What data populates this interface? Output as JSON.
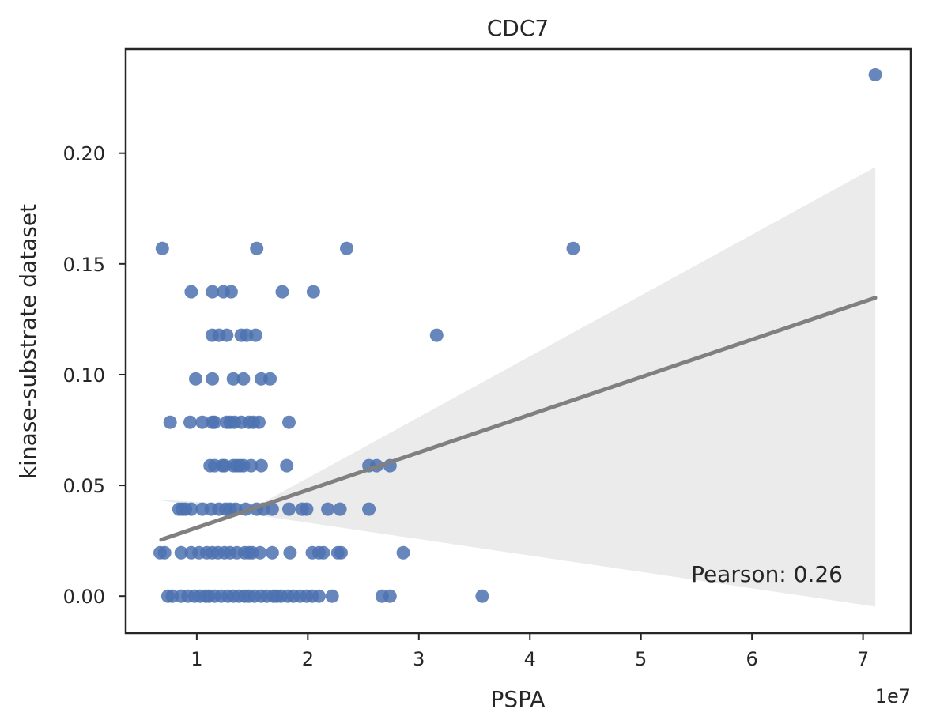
{
  "chart_data": {
    "type": "scatter",
    "title": "CDC7",
    "xlabel": "PSPA",
    "ylabel": "kinase-substrate dataset",
    "x_offset_label": "1e7",
    "x_tick_labels": [
      "1",
      "2",
      "3",
      "4",
      "5",
      "6",
      "7"
    ],
    "x_ticks": [
      1,
      2,
      3,
      4,
      5,
      6,
      7
    ],
    "y_tick_labels": [
      "0.00",
      "0.05",
      "0.10",
      "0.15",
      "0.20"
    ],
    "y_ticks": [
      0.0,
      0.05,
      0.1,
      0.15,
      0.2
    ],
    "xlim": [
      0.36,
      7.43
    ],
    "ylim": [
      -0.0167,
      0.247
    ],
    "grid": false,
    "annotation": "Pearson: 0.26",
    "colors": {
      "points": "#4c72b0",
      "regression_line": "#808080",
      "confidence_band": "#ebebeb",
      "axes": "#262626"
    },
    "regression": {
      "x": [
        0.68,
        7.11
      ],
      "y": [
        0.0255,
        0.1347
      ],
      "ci_lower": [
        0.0432,
        -0.0047
      ],
      "ci_upper": [
        0.0435,
        0.1937
      ],
      "ci_mid_x": 1.55,
      "ci_mid_lower": 0.0365,
      "ci_mid_upper": 0.041
    },
    "series": [
      {
        "points": [
          [
            7.11,
            0.2354
          ],
          [
            0.69,
            0.157
          ],
          [
            1.54,
            0.157
          ],
          [
            2.35,
            0.157
          ],
          [
            4.39,
            0.157
          ],
          [
            0.95,
            0.1374
          ],
          [
            1.14,
            0.1374
          ],
          [
            1.24,
            0.1374
          ],
          [
            1.31,
            0.1374
          ],
          [
            1.77,
            0.1374
          ],
          [
            2.05,
            0.1374
          ],
          [
            1.14,
            0.1178
          ],
          [
            1.2,
            0.1178
          ],
          [
            1.27,
            0.1178
          ],
          [
            1.4,
            0.1178
          ],
          [
            1.45,
            0.1178
          ],
          [
            1.53,
            0.1178
          ],
          [
            3.16,
            0.1178
          ],
          [
            0.99,
            0.0981
          ],
          [
            1.14,
            0.0981
          ],
          [
            1.33,
            0.0981
          ],
          [
            1.42,
            0.0981
          ],
          [
            1.58,
            0.0981
          ],
          [
            1.66,
            0.0981
          ],
          [
            0.76,
            0.0785
          ],
          [
            0.94,
            0.0785
          ],
          [
            1.05,
            0.0785
          ],
          [
            1.14,
            0.0785
          ],
          [
            1.16,
            0.0785
          ],
          [
            1.27,
            0.0785
          ],
          [
            1.3,
            0.0785
          ],
          [
            1.34,
            0.0785
          ],
          [
            1.4,
            0.0785
          ],
          [
            1.47,
            0.0785
          ],
          [
            1.51,
            0.0785
          ],
          [
            1.56,
            0.0785
          ],
          [
            1.83,
            0.0785
          ],
          [
            1.12,
            0.0589
          ],
          [
            1.16,
            0.0589
          ],
          [
            1.23,
            0.0589
          ],
          [
            1.25,
            0.0589
          ],
          [
            1.33,
            0.0589
          ],
          [
            1.36,
            0.0589
          ],
          [
            1.39,
            0.0589
          ],
          [
            1.42,
            0.0589
          ],
          [
            1.49,
            0.0589
          ],
          [
            1.58,
            0.0589
          ],
          [
            1.81,
            0.0589
          ],
          [
            2.55,
            0.0589
          ],
          [
            2.62,
            0.0589
          ],
          [
            2.74,
            0.0589
          ],
          [
            0.84,
            0.0393
          ],
          [
            0.87,
            0.0393
          ],
          [
            0.9,
            0.0393
          ],
          [
            0.95,
            0.0393
          ],
          [
            1.05,
            0.0393
          ],
          [
            1.13,
            0.0393
          ],
          [
            1.2,
            0.0393
          ],
          [
            1.26,
            0.0393
          ],
          [
            1.3,
            0.0393
          ],
          [
            1.35,
            0.0393
          ],
          [
            1.44,
            0.0393
          ],
          [
            1.54,
            0.0393
          ],
          [
            1.6,
            0.0393
          ],
          [
            1.68,
            0.0393
          ],
          [
            1.83,
            0.0393
          ],
          [
            1.95,
            0.0393
          ],
          [
            1.99,
            0.0393
          ],
          [
            2.18,
            0.0393
          ],
          [
            2.29,
            0.0393
          ],
          [
            2.55,
            0.0393
          ],
          [
            0.67,
            0.0196
          ],
          [
            0.71,
            0.0196
          ],
          [
            0.86,
            0.0196
          ],
          [
            0.95,
            0.0196
          ],
          [
            1.02,
            0.0196
          ],
          [
            1.09,
            0.0196
          ],
          [
            1.14,
            0.0196
          ],
          [
            1.19,
            0.0196
          ],
          [
            1.25,
            0.0196
          ],
          [
            1.3,
            0.0196
          ],
          [
            1.36,
            0.0196
          ],
          [
            1.43,
            0.0196
          ],
          [
            1.47,
            0.0196
          ],
          [
            1.5,
            0.0196
          ],
          [
            1.57,
            0.0196
          ],
          [
            1.68,
            0.0196
          ],
          [
            1.84,
            0.0196
          ],
          [
            2.04,
            0.0196
          ],
          [
            2.1,
            0.0196
          ],
          [
            2.14,
            0.0196
          ],
          [
            2.27,
            0.0196
          ],
          [
            2.3,
            0.0196
          ],
          [
            2.86,
            0.0196
          ],
          [
            0.74,
            0.0
          ],
          [
            0.78,
            0.0
          ],
          [
            0.86,
            0.0
          ],
          [
            0.92,
            0.0
          ],
          [
            0.98,
            0.0
          ],
          [
            1.03,
            0.0
          ],
          [
            1.08,
            0.0
          ],
          [
            1.11,
            0.0
          ],
          [
            1.16,
            0.0
          ],
          [
            1.22,
            0.0
          ],
          [
            1.28,
            0.0
          ],
          [
            1.33,
            0.0
          ],
          [
            1.38,
            0.0
          ],
          [
            1.43,
            0.0
          ],
          [
            1.47,
            0.0
          ],
          [
            1.52,
            0.0
          ],
          [
            1.58,
            0.0
          ],
          [
            1.63,
            0.0
          ],
          [
            1.69,
            0.0
          ],
          [
            1.72,
            0.0
          ],
          [
            1.76,
            0.0
          ],
          [
            1.82,
            0.0
          ],
          [
            1.87,
            0.0
          ],
          [
            1.93,
            0.0
          ],
          [
            1.99,
            0.0
          ],
          [
            2.04,
            0.0
          ],
          [
            2.1,
            0.0
          ],
          [
            2.22,
            0.0
          ],
          [
            2.67,
            0.0
          ],
          [
            2.74,
            0.0
          ],
          [
            3.57,
            0.0
          ]
        ]
      }
    ]
  }
}
